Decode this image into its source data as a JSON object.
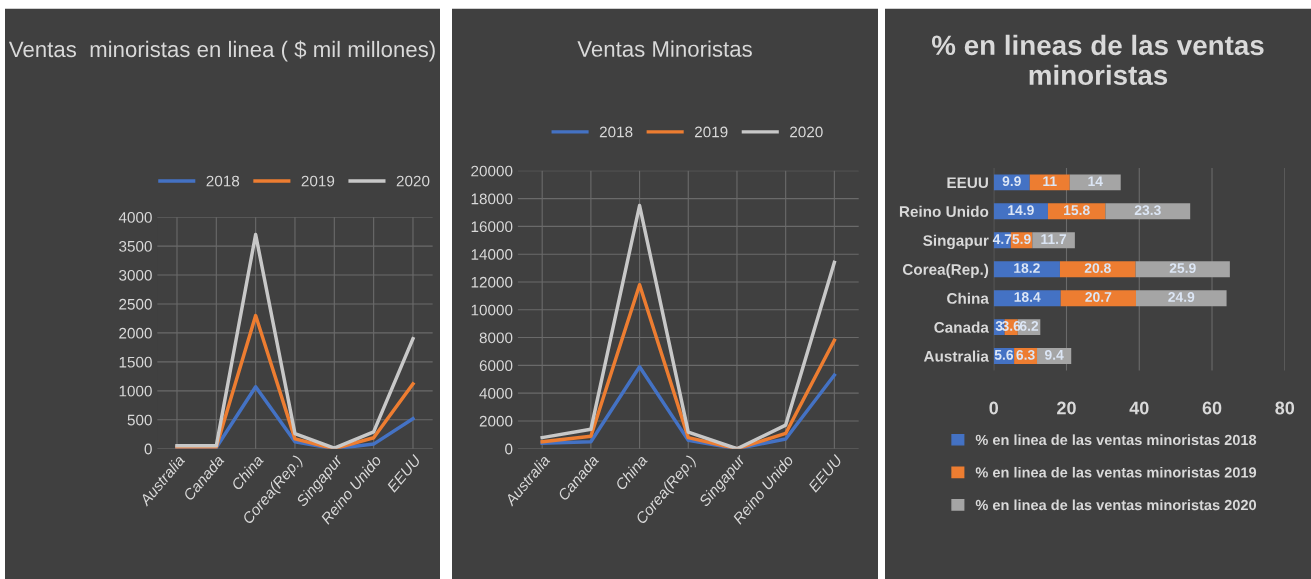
{
  "chart_data": [
    {
      "type": "line",
      "title": "Ventas  minoristas en linea ( $ mil millones)",
      "categories": [
        "Australia",
        "Canada",
        "China",
        "Corea(Rep.)",
        "Singapur",
        "Reino Unido",
        "EEUU"
      ],
      "ylim": [
        0,
        4000
      ],
      "yticks": [
        0,
        500,
        1000,
        1500,
        2000,
        2500,
        3000,
        3500,
        4000
      ],
      "grid": true,
      "legend": "top",
      "series": [
        {
          "name": "2018",
          "color": "#4472c4",
          "values": [
            20,
            20,
            1070,
            120,
            0,
            80,
            520
          ]
        },
        {
          "name": "2019",
          "color": "#ed7d31",
          "values": [
            30,
            30,
            2300,
            170,
            0,
            190,
            1120
          ]
        },
        {
          "name": "2020",
          "color": "#c8c8c8",
          "values": [
            50,
            50,
            3700,
            260,
            10,
            290,
            1900
          ]
        }
      ]
    },
    {
      "type": "line",
      "title": "Ventas Minoristas",
      "categories": [
        "Australia",
        "Canada",
        "China",
        "Corea(Rep.)",
        "Singapur",
        "Reino Unido",
        "EEUU"
      ],
      "ylim": [
        0,
        20000
      ],
      "yticks": [
        0,
        2000,
        4000,
        6000,
        8000,
        10000,
        12000,
        14000,
        16000,
        18000,
        20000
      ],
      "grid": true,
      "legend": "top",
      "series": [
        {
          "name": "2018",
          "color": "#4472c4",
          "values": [
            400,
            500,
            5900,
            600,
            0,
            700,
            5300
          ]
        },
        {
          "name": "2019",
          "color": "#ed7d31",
          "values": [
            500,
            900,
            11800,
            800,
            0,
            1100,
            7800
          ]
        },
        {
          "name": "2020",
          "color": "#c8c8c8",
          "values": [
            800,
            1400,
            17500,
            1200,
            0,
            1700,
            13400
          ]
        }
      ]
    },
    {
      "type": "bar",
      "orientation": "horizontal",
      "stacked": true,
      "data_labels": true,
      "title": "% en lineas de las ventas minoristas",
      "categories": [
        "EEUU",
        "Reino Unido",
        "Singapur",
        "Corea(Rep.)",
        "China",
        "Canada",
        "Australia"
      ],
      "xlim": [
        0,
        80
      ],
      "xticks": [
        0,
        20,
        40,
        60,
        80
      ],
      "grid": "x",
      "legend": "bottom",
      "series": [
        {
          "name": "% en linea de las ventas minoristas 2018",
          "color": "#4472c4",
          "values": [
            9.9,
            14.9,
            4.7,
            18.2,
            18.4,
            3,
            5.6
          ]
        },
        {
          "name": "% en linea de las ventas minoristas 2019",
          "color": "#ed7d31",
          "values": [
            11,
            15.8,
            5.9,
            20.8,
            20.7,
            3.6,
            6.3
          ]
        },
        {
          "name": "% en linea de las ventas minoristas 2020",
          "color": "#a5a5a5",
          "values": [
            14,
            23.3,
            11.7,
            25.9,
            24.9,
            6.2,
            9.4
          ]
        }
      ]
    }
  ]
}
